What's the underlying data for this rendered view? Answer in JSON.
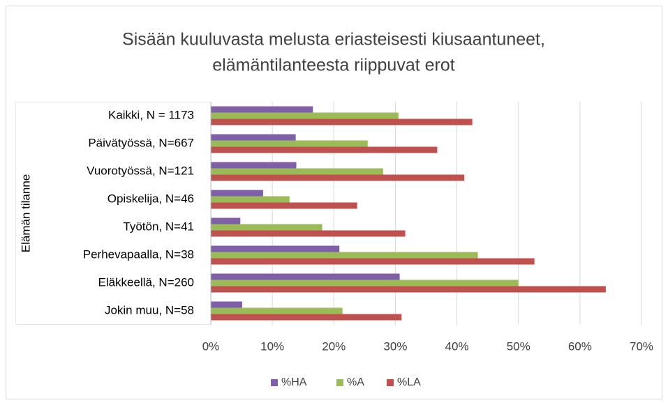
{
  "chart_data": {
    "type": "bar",
    "orientation": "horizontal",
    "title": [
      "Sisään kuuluvasta melusta eriasteisesti kiusaantuneet,",
      "elämäntilanteesta riippuvat erot"
    ],
    "y_label": "Elämän tilanne",
    "categories": [
      "Kaikki, N = 1173",
      "Päivätyössä, N=667",
      "Vuorotyössä, N=121",
      "Opiskelija, N=46",
      "Työtön, N=41",
      "Perhevapaalla, N=38",
      "Eläkkeellä, N=260",
      "Jokin muu, N=58"
    ],
    "series": [
      {
        "name": "%HA",
        "color": "#7f60a8",
        "values": [
          16.6,
          13.8,
          13.9,
          8.5,
          4.8,
          20.9,
          30.7,
          5.1
        ]
      },
      {
        "name": "%A",
        "color": "#9bbb59",
        "values": [
          30.5,
          25.5,
          28.0,
          12.8,
          18.1,
          43.4,
          50.0,
          21.4
        ]
      },
      {
        "name": "%LA",
        "color": "#c0504d",
        "values": [
          42.5,
          36.8,
          41.2,
          23.8,
          31.6,
          52.6,
          64.2,
          31.0
        ]
      }
    ],
    "xlim": [
      0,
      70
    ],
    "xticks": [
      {
        "value": 0,
        "label": "0%"
      },
      {
        "value": 10,
        "label": "10%"
      },
      {
        "value": 20,
        "label": "20%"
      },
      {
        "value": 30,
        "label": "30%"
      },
      {
        "value": 40,
        "label": "40%"
      },
      {
        "value": 50,
        "label": "50%"
      },
      {
        "value": 60,
        "label": "60%"
      },
      {
        "value": 70,
        "label": "70%"
      }
    ],
    "grid": true,
    "legend": "bottom"
  }
}
